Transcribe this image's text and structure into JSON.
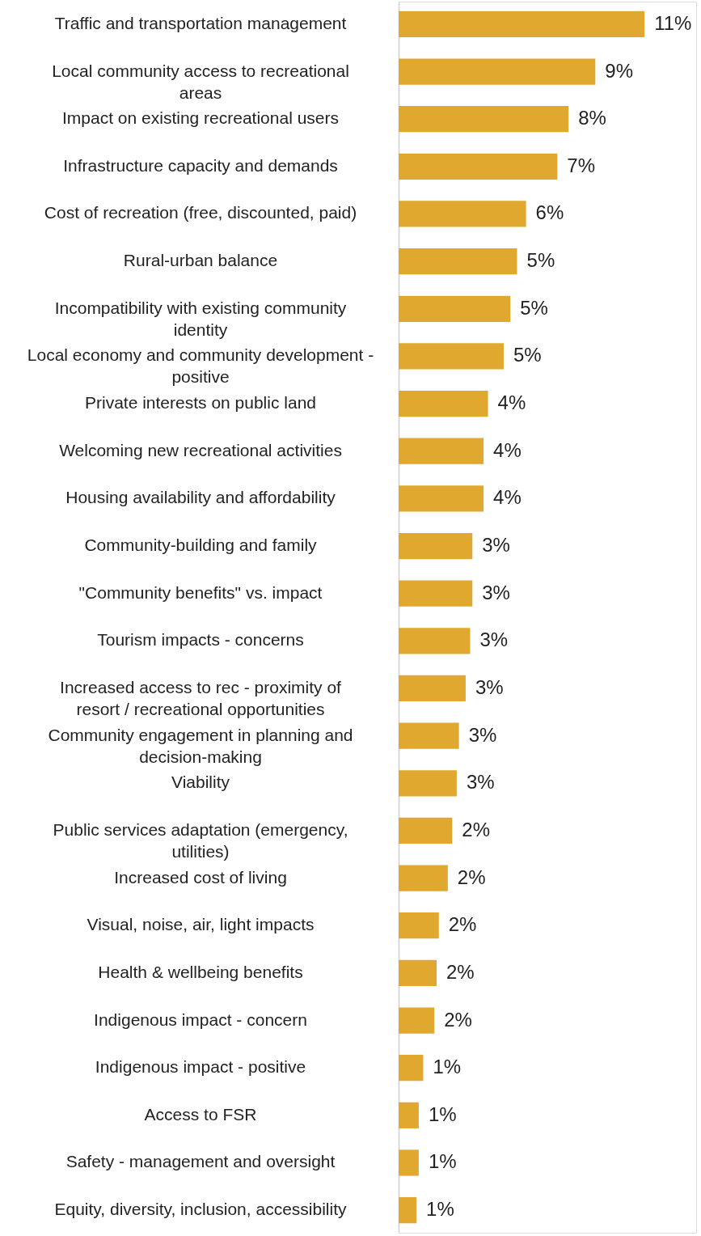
{
  "chart_data": {
    "type": "bar",
    "orientation": "horizontal",
    "color": "#e0a82e",
    "categories": [
      "Traffic and transportation management",
      "Local community access to recreational areas",
      "Impact on existing recreational users",
      "Infrastructure capacity and demands",
      "Cost of recreation (free, discounted, paid)",
      "Rural-urban balance",
      "Incompatibility with existing community identity",
      "Local economy and community development - positive",
      "Private interests on public land",
      "Welcoming new recreational activities",
      "Housing availability and affordability",
      "Community-building and family",
      "\"Community benefits\" vs. impact",
      "Tourism impacts - concerns",
      "Increased access to rec - proximity of resort / recreational opportunities",
      "Community engagement in planning and decision-making",
      "Viability",
      "Public services adaptation (emergency, utilities)",
      "Increased cost of living",
      "Visual, noise, air, light impacts",
      "Health & wellbeing benefits",
      "Indigenous impact - concern",
      "Indigenous impact - positive",
      "Access to FSR",
      "Safety - management and oversight",
      "Equity, diversity, inclusion, accessibility"
    ],
    "values": [
      11.0,
      8.8,
      7.6,
      7.1,
      5.7,
      5.3,
      5.0,
      4.7,
      4.0,
      3.8,
      3.8,
      3.3,
      3.3,
      3.2,
      3.0,
      2.7,
      2.6,
      2.4,
      2.2,
      1.8,
      1.7,
      1.6,
      1.1,
      0.9,
      0.9,
      0.8
    ],
    "value_labels": [
      "11%",
      "9%",
      "8%",
      "7%",
      "6%",
      "5%",
      "5%",
      "5%",
      "4%",
      "4%",
      "4%",
      "3%",
      "3%",
      "3%",
      "3%",
      "3%",
      "3%",
      "2%",
      "2%",
      "2%",
      "2%",
      "2%",
      "1%",
      "1%",
      "1%",
      "1%"
    ]
  }
}
